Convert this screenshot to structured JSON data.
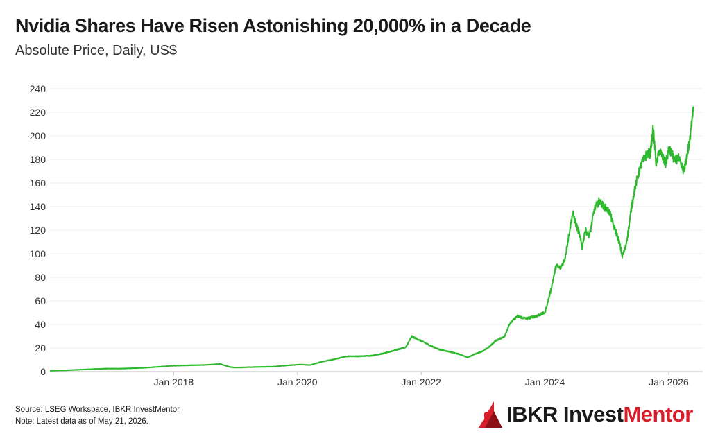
{
  "header": {
    "title": "Nvidia Shares Have Risen Astonishing 20,000% in a Decade",
    "subtitle": "Absolute Price, Daily, US$"
  },
  "footer": {
    "source": "Source: LSEG Workspace, IBKR InvestMentor",
    "note": "Note: Latest data as of May 21, 2026."
  },
  "brand": {
    "part1": "IBKR Invest",
    "part2": "Mentor",
    "icon": "ibkr-logo-icon",
    "color": "#d81e2a"
  },
  "chart_data": {
    "type": "line",
    "title": "Nvidia Shares Have Risen Astonishing 20,000% in a Decade",
    "subtitle": "Absolute Price, Daily, US$",
    "xlabel": "",
    "ylabel": "",
    "xlim": [
      2016.0,
      2026.55
    ],
    "ylim": [
      0,
      240
    ],
    "yticks": [
      0,
      20,
      40,
      60,
      80,
      100,
      120,
      140,
      160,
      180,
      200,
      220,
      240
    ],
    "xticks": [
      {
        "value": 2018.0,
        "label": "Jan 2018"
      },
      {
        "value": 2020.0,
        "label": "Jan 2020"
      },
      {
        "value": 2022.0,
        "label": "Jan 2022"
      },
      {
        "value": 2024.0,
        "label": "Jan 2024"
      },
      {
        "value": 2026.0,
        "label": "Jan 2026"
      }
    ],
    "grid": "horizontal",
    "line_color": "#2db82d",
    "series": [
      {
        "x": [
          2016.0,
          2016.3,
          2016.6,
          2016.9,
          2017.2,
          2017.5,
          2017.8,
          2018.0,
          2018.3,
          2018.5,
          2018.75,
          2018.9,
          2019.0,
          2019.3,
          2019.6,
          2019.9,
          2020.05,
          2020.2,
          2020.4,
          2020.6,
          2020.8,
          2021.0,
          2021.2,
          2021.4,
          2021.6,
          2021.75,
          2021.85,
          2021.92,
          2022.0,
          2022.15,
          2022.3,
          2022.45,
          2022.6,
          2022.75,
          2022.85,
          2023.0,
          2023.1,
          2023.2,
          2023.35,
          2023.42,
          2023.55,
          2023.7,
          2023.85,
          2024.0,
          2024.1,
          2024.18,
          2024.25,
          2024.32,
          2024.4,
          2024.45,
          2024.5,
          2024.55,
          2024.6,
          2024.65,
          2024.72,
          2024.8,
          2024.88,
          2024.95,
          2025.0,
          2025.05,
          2025.1,
          2025.15,
          2025.2,
          2025.25,
          2025.3,
          2025.35,
          2025.4,
          2025.45,
          2025.5,
          2025.55,
          2025.6,
          2025.65,
          2025.7,
          2025.75,
          2025.8,
          2025.85,
          2025.9,
          2025.95,
          2026.0,
          2026.05,
          2026.1,
          2026.15,
          2026.2,
          2026.25,
          2026.3,
          2026.35,
          2026.38,
          2026.4
        ],
        "values": [
          0.8,
          1.2,
          1.9,
          2.5,
          2.6,
          3.2,
          4.2,
          5.0,
          5.4,
          5.6,
          6.5,
          4.0,
          3.4,
          3.9,
          4.2,
          5.5,
          6.0,
          5.5,
          8.5,
          10.5,
          13.0,
          13.0,
          13.5,
          15.5,
          18.5,
          20.5,
          30.0,
          28.0,
          26.0,
          22.0,
          18.5,
          17.0,
          15.0,
          12.0,
          14.5,
          17.5,
          21.0,
          26.0,
          30.0,
          40.0,
          47.0,
          45.0,
          47.0,
          50.0,
          70.0,
          90.0,
          88.0,
          95.0,
          120.0,
          135.0,
          125.0,
          118.0,
          105.0,
          120.0,
          115.0,
          138.0,
          145.0,
          140.0,
          138.0,
          135.0,
          125.0,
          118.0,
          110.0,
          98.0,
          105.0,
          120.0,
          140.0,
          155.0,
          165.0,
          175.0,
          180.0,
          185.0,
          185.0,
          206.0,
          175.0,
          188.0,
          182.0,
          176.0,
          188.0,
          185.0,
          178.0,
          182.0,
          175.0,
          170.0,
          185.0,
          198.0,
          218.0,
          225.0
        ]
      }
    ]
  }
}
